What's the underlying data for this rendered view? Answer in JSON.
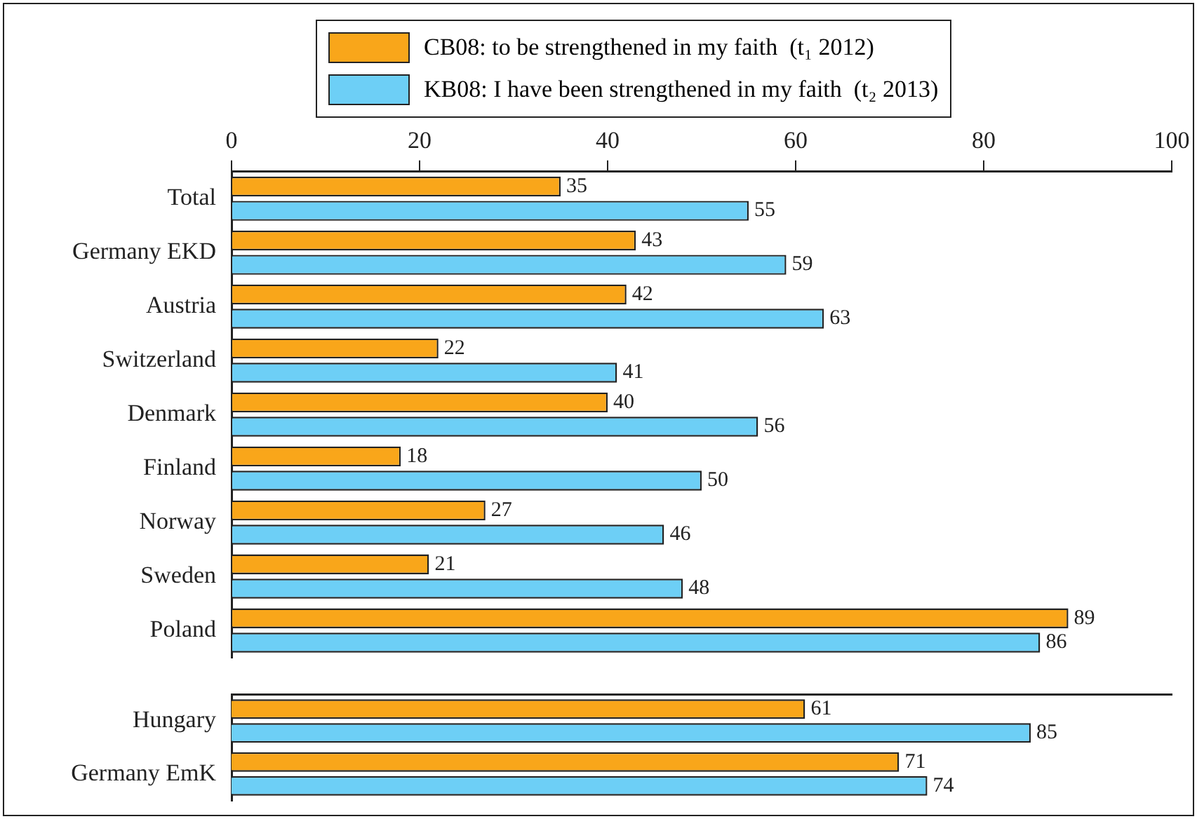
{
  "chart_data": [
    {
      "type": "bar",
      "orientation": "horizontal",
      "categories": [
        "Total",
        "Germany EKD",
        "Austria",
        "Switzerland",
        "Denmark",
        "Finland",
        "Norway",
        "Sweden",
        "Poland"
      ],
      "series": [
        {
          "name": "CB08: to be strengthened in my faith  (t₁ 2012)",
          "color": "#f9a61a",
          "values": [
            35,
            43,
            42,
            22,
            40,
            18,
            27,
            21,
            89
          ]
        },
        {
          "name": "KB08: I have been strengthened in my faith  (t₂ 2013)",
          "color": "#6dcff6",
          "values": [
            55,
            59,
            63,
            41,
            56,
            50,
            46,
            48,
            86
          ]
        }
      ],
      "xlim": [
        0,
        100
      ],
      "xticks": [
        0,
        20,
        40,
        60,
        80,
        100
      ],
      "grid": false,
      "legend": "top",
      "data_labels": true
    },
    {
      "type": "bar",
      "orientation": "horizontal",
      "categories": [
        "Hungary",
        "Germany EmK"
      ],
      "series": [
        {
          "color": "#f9a61a",
          "values": [
            61,
            71
          ]
        },
        {
          "color": "#6dcff6",
          "values": [
            85,
            74
          ]
        }
      ],
      "xlim": [
        0,
        100
      ],
      "tick_labels": "y",
      "grid": false,
      "data_labels": true
    }
  ]
}
